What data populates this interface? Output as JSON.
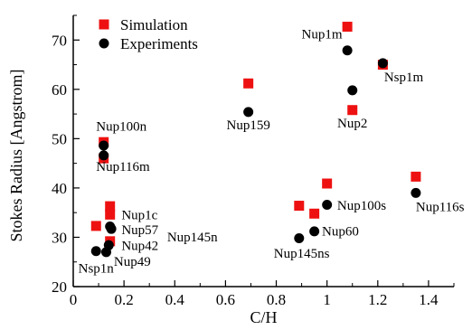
{
  "chart_data": {
    "type": "scatter",
    "xlabel": "C/H",
    "ylabel": "Stokes Radius [Angstrom]",
    "xlim": [
      0,
      1.5
    ],
    "ylim": [
      20,
      75
    ],
    "x_ticks": [
      0,
      0.2,
      0.4,
      0.6,
      0.8,
      1,
      1.2,
      1.4
    ],
    "x_tick_labels": [
      "0",
      "0.2",
      "0.4",
      "0.6",
      "0.8",
      "1",
      "1.2",
      "1.4"
    ],
    "y_ticks": [
      20,
      30,
      40,
      50,
      60,
      70
    ],
    "y_tick_labels": [
      "20",
      "30",
      "40",
      "50",
      "60",
      "70"
    ],
    "grid": false,
    "legend": {
      "position": "top-left"
    },
    "colors": {
      "simulation": "#ee1111",
      "experiments": "#000000",
      "axis": "#000000"
    },
    "series": [
      {
        "name": "Simulation",
        "marker": "square",
        "points": [
          {
            "x": 0.09,
            "y": 32.3
          },
          {
            "x": 0.12,
            "y": 49.3
          },
          {
            "x": 0.12,
            "y": 46.0
          },
          {
            "x": 0.145,
            "y": 36.3
          },
          {
            "x": 0.145,
            "y": 34.6
          },
          {
            "x": 0.145,
            "y": 29.2
          },
          {
            "x": 0.69,
            "y": 61.2
          },
          {
            "x": 0.89,
            "y": 36.4
          },
          {
            "x": 0.95,
            "y": 34.8
          },
          {
            "x": 1.0,
            "y": 40.9
          },
          {
            "x": 1.08,
            "y": 72.7
          },
          {
            "x": 1.1,
            "y": 55.8
          },
          {
            "x": 1.22,
            "y": 65.0
          },
          {
            "x": 1.35,
            "y": 42.3
          }
        ]
      },
      {
        "name": "Experiments",
        "marker": "circle",
        "points": [
          {
            "x": 0.09,
            "y": 27.2
          },
          {
            "x": 0.12,
            "y": 48.6
          },
          {
            "x": 0.12,
            "y": 46.6
          },
          {
            "x": 0.13,
            "y": 27.0
          },
          {
            "x": 0.14,
            "y": 28.4
          },
          {
            "x": 0.145,
            "y": 32.2
          },
          {
            "x": 0.15,
            "y": 31.7
          },
          {
            "x": 0.69,
            "y": 55.4
          },
          {
            "x": 0.89,
            "y": 29.8
          },
          {
            "x": 0.95,
            "y": 31.2
          },
          {
            "x": 1.0,
            "y": 36.6
          },
          {
            "x": 1.08,
            "y": 67.9
          },
          {
            "x": 1.1,
            "y": 59.8
          },
          {
            "x": 1.22,
            "y": 65.3
          },
          {
            "x": 1.35,
            "y": 39.0
          }
        ]
      }
    ],
    "annotations": [
      {
        "text": "Nup1m",
        "x": 1.06,
        "y": 70.3,
        "anchor": "end"
      },
      {
        "text": "Nsp1m",
        "x": 1.225,
        "y": 61.6,
        "anchor": "start"
      },
      {
        "text": "Nup159",
        "x": 0.69,
        "y": 51.9,
        "anchor": "middle"
      },
      {
        "text": "Nup2",
        "x": 1.1,
        "y": 52.3,
        "anchor": "middle"
      },
      {
        "text": "Nup100n",
        "x": 0.09,
        "y": 51.6,
        "anchor": "start"
      },
      {
        "text": "Nup116m",
        "x": 0.09,
        "y": 43.5,
        "anchor": "start"
      },
      {
        "text": "Nup100s",
        "x": 1.04,
        "y": 35.6,
        "anchor": "start"
      },
      {
        "text": "Nup116s",
        "x": 1.35,
        "y": 35.3,
        "anchor": "start"
      },
      {
        "text": "Nup60",
        "x": 0.98,
        "y": 30.4,
        "anchor": "start"
      },
      {
        "text": "Nup145ns",
        "x": 0.9,
        "y": 25.9,
        "anchor": "middle"
      },
      {
        "text": "Nup1c",
        "x": 0.19,
        "y": 33.7,
        "anchor": "start"
      },
      {
        "text": "Nup57",
        "x": 0.19,
        "y": 30.6,
        "anchor": "start"
      },
      {
        "text": "Nup42",
        "x": 0.19,
        "y": 27.4,
        "anchor": "start"
      },
      {
        "text": "Nup145n",
        "x": 0.37,
        "y": 29.2,
        "anchor": "start"
      },
      {
        "text": "Nup49",
        "x": 0.16,
        "y": 24.2,
        "anchor": "start"
      },
      {
        "text": "Nsp1n",
        "x": 0.02,
        "y": 22.8,
        "anchor": "start"
      }
    ]
  }
}
